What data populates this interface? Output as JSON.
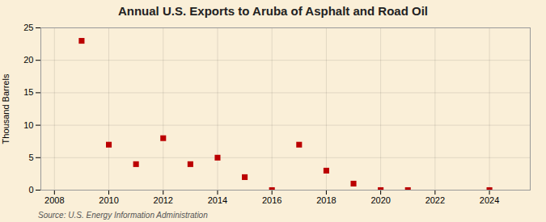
{
  "chart_data": {
    "type": "scatter",
    "title": "Annual U.S. Exports to Aruba of Asphalt and Road Oil",
    "ylabel": "Thousand Barrels",
    "annotations": [
      "Source: U.S. Energy Information Administration"
    ],
    "x": [
      2009,
      2010,
      2011,
      2012,
      2013,
      2014,
      2015,
      2016,
      2017,
      2018,
      2019,
      2020,
      2021,
      2024
    ],
    "values": [
      23,
      7,
      4,
      8,
      4,
      5,
      2,
      0,
      7,
      3,
      1,
      0,
      0,
      0
    ],
    "color": "#bb0000",
    "marker": "square",
    "xlim": [
      2007.5,
      2025.5
    ],
    "xticks": [
      2008,
      2010,
      2012,
      2014,
      2016,
      2018,
      2020,
      2022,
      2024
    ],
    "ylim": [
      0,
      25
    ],
    "yticks": [
      0,
      5,
      10,
      15,
      20,
      25
    ],
    "grid": true
  }
}
